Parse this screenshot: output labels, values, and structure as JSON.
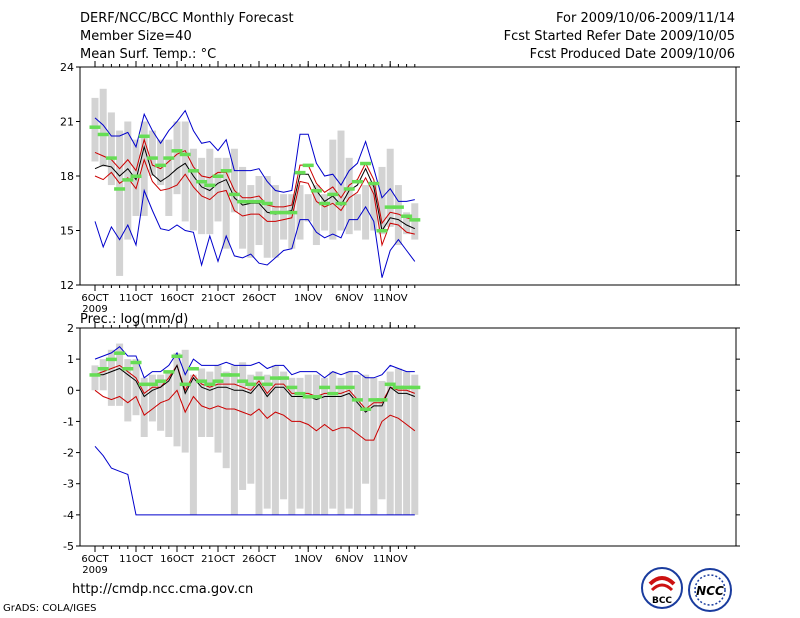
{
  "header": {
    "title": "DERF/NCC/BCC Monthly Forecast",
    "member_size": "Member Size=40",
    "period": "For 2009/10/06-2009/11/14",
    "started": "Fcst Started Refer Date 2009/10/05",
    "produced": "Fcst Produced Date 2009/10/06"
  },
  "footer": {
    "url": "http://cmdp.ncc.cma.gov.cn",
    "credit": "GrADS: COLA/IGES",
    "logo1_text": "BCC",
    "logo2_text": "NCC"
  },
  "colors": {
    "bar": "#d3d3d3",
    "median": "#66dd55",
    "envelope": "#0000cc",
    "band": "#cc0000",
    "mean": "#000000"
  },
  "chart_data": [
    {
      "type": "line",
      "title": "Mean Surf. Temp.: °C",
      "ylim": [
        12,
        24
      ],
      "yticks": [
        12,
        15,
        18,
        21,
        24
      ],
      "x_tick_labels": [
        "6OCT",
        "11OCT",
        "16OCT",
        "21OCT",
        "26OCT",
        "1NOV",
        "6NOV",
        "11NOV"
      ],
      "x_year_label": "2009",
      "x_tick_days": [
        1,
        6,
        11,
        16,
        21,
        27,
        32,
        37
      ],
      "days": [
        1,
        2,
        3,
        4,
        5,
        6,
        7,
        8,
        9,
        10,
        11,
        12,
        13,
        14,
        15,
        16,
        17,
        18,
        19,
        20,
        21,
        22,
        23,
        24,
        25,
        26,
        27,
        28,
        29,
        30,
        31,
        32,
        33,
        34,
        35,
        36,
        37,
        38,
        39,
        40
      ],
      "bars_low": [
        18.8,
        18.5,
        17.5,
        12.5,
        14.5,
        15.8,
        15.8,
        18.0,
        17.5,
        15.8,
        17.0,
        15.5,
        15.0,
        14.8,
        14.8,
        15.5,
        14.0,
        16.0,
        14.0,
        13.5,
        14.2,
        13.5,
        13.5,
        14.5,
        14.0,
        14.5,
        15.5,
        14.2,
        15.0,
        14.5,
        15.0,
        14.8,
        15.0,
        14.5,
        15.0,
        14.8,
        15.2,
        14.2,
        14.8,
        14.5
      ],
      "bars_high": [
        22.3,
        22.8,
        21.5,
        20.5,
        21.0,
        20.0,
        21.0,
        20.5,
        20.0,
        20.0,
        21.0,
        21.0,
        19.5,
        19.0,
        19.5,
        19.0,
        19.0,
        19.5,
        18.5,
        17.5,
        18.0,
        18.0,
        17.5,
        17.0,
        17.0,
        17.5,
        17.0,
        17.5,
        17.0,
        20.0,
        20.5,
        19.0,
        17.0,
        17.5,
        17.5,
        18.5,
        19.5,
        17.5,
        16.0,
        16.5
      ],
      "median": [
        20.7,
        20.3,
        19.0,
        17.3,
        17.8,
        18.0,
        20.2,
        19.0,
        18.6,
        19.0,
        19.4,
        19.2,
        18.3,
        17.7,
        17.5,
        18.0,
        18.3,
        17.0,
        16.6,
        16.6,
        16.6,
        16.5,
        16.0,
        16.0,
        16.0,
        18.2,
        18.6,
        17.2,
        16.5,
        17.0,
        16.5,
        17.3,
        17.7,
        18.7,
        17.6,
        15.0,
        16.3,
        16.3,
        15.8,
        15.6
      ],
      "series": [
        {
          "name": "max",
          "color_key": "envelope",
          "values": [
            21.2,
            20.8,
            20.2,
            20.2,
            20.4,
            19.6,
            21.4,
            20.5,
            19.8,
            20.5,
            21.0,
            21.6,
            20.5,
            19.8,
            19.9,
            19.4,
            20.0,
            18.3,
            18.3,
            18.3,
            18.4,
            17.7,
            17.2,
            17.1,
            17.2,
            20.3,
            20.3,
            18.7,
            18.0,
            18.1,
            17.5,
            18.3,
            18.7,
            19.9,
            18.4,
            16.8,
            17.3,
            16.6,
            16.6,
            16.7
          ]
        },
        {
          "name": "upper",
          "color_key": "band",
          "values": [
            19.3,
            19.1,
            18.9,
            18.4,
            18.9,
            18.3,
            20.0,
            18.6,
            18.4,
            18.8,
            19.2,
            19.4,
            18.5,
            18.0,
            17.9,
            18.2,
            18.2,
            17.2,
            16.8,
            16.8,
            16.9,
            16.4,
            16.3,
            16.3,
            16.4,
            18.6,
            18.6,
            17.6,
            17.1,
            17.4,
            16.8,
            17.5,
            17.8,
            18.7,
            17.8,
            15.4,
            16.0,
            15.9,
            15.7,
            15.6
          ]
        },
        {
          "name": "mean",
          "color_key": "mean",
          "values": [
            18.4,
            18.6,
            18.5,
            18.0,
            18.4,
            17.8,
            19.6,
            18.1,
            17.7,
            18.0,
            18.4,
            18.7,
            18.0,
            17.4,
            17.2,
            17.6,
            17.8,
            16.8,
            16.4,
            16.5,
            16.5,
            16.0,
            15.9,
            16.0,
            16.1,
            18.1,
            18.1,
            17.2,
            16.6,
            16.9,
            16.4,
            17.2,
            17.5,
            18.4,
            17.4,
            15.0,
            15.7,
            15.6,
            15.3,
            15.1
          ]
        },
        {
          "name": "lower",
          "color_key": "band",
          "values": [
            18.0,
            17.8,
            18.2,
            17.6,
            17.9,
            17.3,
            18.9,
            17.7,
            17.2,
            17.3,
            17.5,
            18.1,
            17.4,
            16.9,
            16.7,
            17.1,
            17.2,
            16.1,
            15.8,
            15.9,
            15.9,
            15.5,
            15.5,
            15.6,
            15.7,
            17.7,
            17.6,
            16.6,
            16.3,
            16.5,
            16.1,
            16.8,
            17.1,
            17.9,
            17.0,
            14.2,
            15.4,
            15.3,
            14.9,
            14.8
          ]
        },
        {
          "name": "min",
          "color_key": "envelope",
          "values": [
            15.5,
            14.1,
            15.2,
            14.5,
            15.3,
            14.2,
            17.2,
            16.1,
            15.1,
            15.0,
            15.3,
            15.0,
            14.9,
            13.1,
            14.7,
            13.3,
            14.7,
            13.6,
            13.5,
            13.7,
            13.2,
            13.1,
            13.5,
            13.9,
            14.0,
            15.6,
            15.6,
            14.9,
            14.6,
            14.8,
            14.6,
            15.6,
            15.6,
            16.3,
            15.5,
            12.4,
            13.9,
            14.5,
            13.9,
            13.3
          ]
        }
      ]
    },
    {
      "type": "line",
      "title": "Prec.: log(mm/d)",
      "ylim": [
        -5,
        2
      ],
      "yticks": [
        -5,
        -4,
        -3,
        -2,
        -1,
        0,
        1,
        2
      ],
      "x_tick_labels": [
        "6OCT",
        "11OCT",
        "16OCT",
        "21OCT",
        "26OCT",
        "1NOV",
        "6NOV",
        "11NOV"
      ],
      "x_year_label": "2009",
      "x_tick_days": [
        1,
        6,
        11,
        16,
        21,
        27,
        32,
        37
      ],
      "days": [
        1,
        2,
        3,
        4,
        5,
        6,
        7,
        8,
        9,
        10,
        11,
        12,
        13,
        14,
        15,
        16,
        17,
        18,
        19,
        20,
        21,
        22,
        23,
        24,
        25,
        26,
        27,
        28,
        29,
        30,
        31,
        32,
        33,
        34,
        35,
        36,
        37,
        38,
        39,
        40
      ],
      "bars_low": [
        0.0,
        0.0,
        -0.5,
        -0.5,
        -1.0,
        -0.8,
        -1.5,
        -1.0,
        -1.3,
        -1.5,
        -1.8,
        -2.0,
        -4.0,
        -1.5,
        -1.5,
        -2.0,
        -2.5,
        -4.0,
        -3.2,
        -3.0,
        -4.0,
        -3.8,
        -4.0,
        -3.5,
        -4.0,
        -3.8,
        -4.0,
        -4.0,
        -4.0,
        -3.8,
        -4.0,
        -3.8,
        -4.0,
        -3.0,
        -4.0,
        -3.5,
        -4.0,
        -4.0,
        -4.0,
        -4.0
      ],
      "bars_high": [
        0.8,
        1.0,
        1.3,
        1.5,
        1.0,
        1.0,
        0.4,
        0.5,
        0.5,
        0.6,
        1.2,
        1.3,
        0.5,
        0.7,
        0.6,
        0.8,
        0.6,
        0.8,
        0.9,
        0.5,
        0.6,
        0.5,
        0.8,
        0.6,
        0.4,
        0.4,
        0.5,
        0.5,
        0.4,
        0.6,
        0.4,
        0.6,
        0.5,
        0.5,
        0.4,
        0.3,
        0.6,
        0.7,
        0.6,
        0.5
      ],
      "median": [
        0.5,
        0.7,
        1.0,
        1.2,
        0.7,
        0.9,
        0.2,
        0.2,
        0.3,
        0.6,
        1.1,
        0.2,
        0.7,
        0.3,
        0.2,
        0.3,
        0.5,
        0.5,
        0.3,
        0.2,
        0.4,
        0.2,
        0.4,
        0.4,
        0.1,
        -0.1,
        -0.2,
        -0.2,
        0.1,
        -0.1,
        0.1,
        0.1,
        -0.3,
        -0.6,
        -0.3,
        -0.3,
        0.2,
        0.1,
        0.1,
        0.1
      ],
      "series": [
        {
          "name": "max",
          "color_key": "envelope",
          "values": [
            1.0,
            1.1,
            1.2,
            1.4,
            1.1,
            1.1,
            0.4,
            0.6,
            0.6,
            0.8,
            1.2,
            0.5,
            1.0,
            0.8,
            0.8,
            0.8,
            0.9,
            0.8,
            0.8,
            0.8,
            0.9,
            0.7,
            0.8,
            0.8,
            0.5,
            0.6,
            0.6,
            0.6,
            0.4,
            0.6,
            0.5,
            0.6,
            0.6,
            0.4,
            0.4,
            0.5,
            0.8,
            0.7,
            0.6,
            0.6
          ]
        },
        {
          "name": "upper",
          "color_key": "band",
          "values": [
            0.5,
            0.6,
            0.7,
            0.8,
            0.6,
            0.4,
            -0.1,
            0.1,
            0.1,
            0.4,
            0.8,
            0.0,
            0.5,
            0.2,
            0.1,
            0.2,
            0.2,
            0.2,
            0.1,
            0.0,
            0.3,
            -0.1,
            0.2,
            0.2,
            -0.1,
            -0.1,
            -0.1,
            -0.2,
            -0.1,
            -0.1,
            -0.1,
            0.0,
            -0.3,
            -0.6,
            -0.4,
            -0.4,
            0.1,
            0.0,
            0.0,
            -0.1
          ]
        },
        {
          "name": "mean",
          "color_key": "mean",
          "values": [
            0.5,
            0.5,
            0.6,
            0.7,
            0.5,
            0.3,
            -0.2,
            0.0,
            0.1,
            0.3,
            0.8,
            -0.1,
            0.4,
            0.1,
            0.0,
            0.1,
            0.1,
            0.0,
            0.0,
            -0.1,
            0.2,
            -0.2,
            0.1,
            0.1,
            -0.2,
            -0.2,
            -0.2,
            -0.3,
            -0.2,
            -0.2,
            -0.2,
            -0.1,
            -0.4,
            -0.7,
            -0.5,
            -0.5,
            0.1,
            -0.1,
            -0.1,
            -0.2
          ]
        },
        {
          "name": "lower",
          "color_key": "band",
          "values": [
            0.0,
            -0.2,
            -0.3,
            -0.2,
            -0.4,
            -0.2,
            -0.8,
            -0.6,
            -0.4,
            -0.3,
            0.0,
            -0.7,
            -0.2,
            -0.5,
            -0.6,
            -0.5,
            -0.6,
            -0.6,
            -0.7,
            -0.8,
            -0.6,
            -0.9,
            -0.7,
            -0.8,
            -1.0,
            -1.0,
            -1.1,
            -1.3,
            -1.1,
            -1.3,
            -1.2,
            -1.2,
            -1.4,
            -1.6,
            -1.6,
            -1.0,
            -0.8,
            -0.9,
            -1.1,
            -1.3
          ]
        },
        {
          "name": "min",
          "color_key": "envelope",
          "values": [
            -1.8,
            -2.1,
            -2.5,
            -2.6,
            -2.7,
            -4.0,
            -4.0,
            -4.0,
            -4.0,
            -4.0,
            -4.0,
            -4.0,
            -4.0,
            -4.0,
            -4.0,
            -4.0,
            -4.0,
            -4.0,
            -4.0,
            -4.0,
            -4.0,
            -4.0,
            -4.0,
            -4.0,
            -4.0,
            -4.0,
            -4.0,
            -4.0,
            -4.0,
            -4.0,
            -4.0,
            -4.0,
            -4.0,
            -4.0,
            -4.0,
            -4.0,
            -4.0,
            -4.0,
            -4.0,
            -4.0
          ]
        }
      ]
    }
  ]
}
